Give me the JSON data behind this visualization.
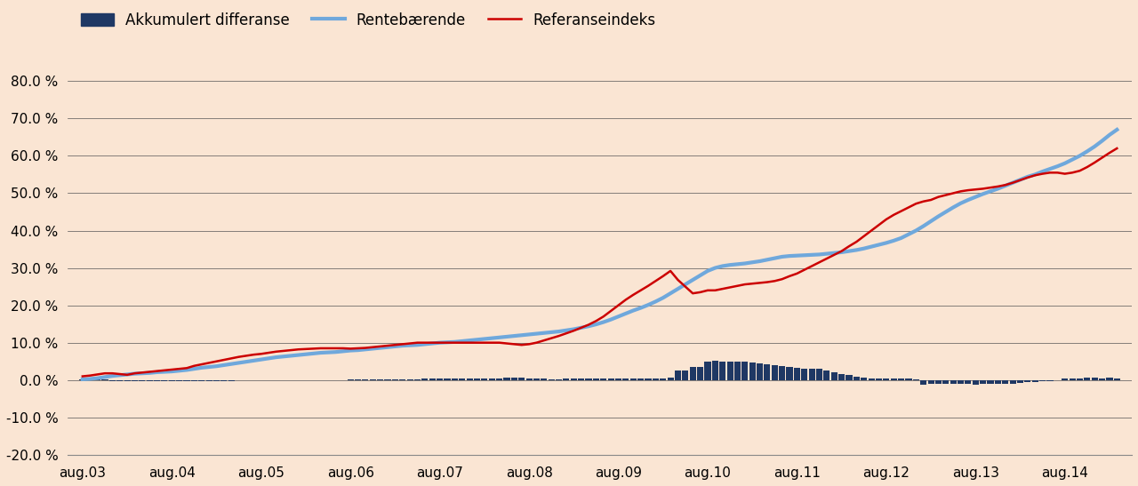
{
  "background_color": "#FAE5D3",
  "plot_bg_color": "#FAE5D3",
  "ylim": [
    -0.2,
    0.8
  ],
  "yticks": [
    -0.2,
    -0.1,
    0.0,
    0.1,
    0.2,
    0.3,
    0.4,
    0.5,
    0.6,
    0.7,
    0.8
  ],
  "xtick_labels": [
    "aug.03",
    "aug.04",
    "aug.05",
    "aug.06",
    "aug.07",
    "aug.08",
    "aug.09",
    "aug.10",
    "aug.11",
    "aug.12",
    "aug.13",
    "aug.14"
  ],
  "legend_labels": [
    "Akkumulert differanse",
    "Rentebærende",
    "Referanseindeks"
  ],
  "bar_color": "#1F3864",
  "line_blue_color": "#6FA8DC",
  "line_red_color": "#CC0000",
  "renteberende": [
    0.002,
    0.003,
    0.005,
    0.008,
    0.011,
    0.013,
    0.015,
    0.017,
    0.018,
    0.019,
    0.021,
    0.022,
    0.023,
    0.025,
    0.027,
    0.03,
    0.033,
    0.035,
    0.037,
    0.04,
    0.043,
    0.046,
    0.049,
    0.052,
    0.055,
    0.058,
    0.061,
    0.063,
    0.065,
    0.067,
    0.069,
    0.071,
    0.073,
    0.074,
    0.075,
    0.077,
    0.079,
    0.08,
    0.082,
    0.084,
    0.086,
    0.088,
    0.09,
    0.092,
    0.093,
    0.094,
    0.096,
    0.098,
    0.1,
    0.101,
    0.102,
    0.104,
    0.106,
    0.108,
    0.11,
    0.112,
    0.114,
    0.116,
    0.118,
    0.12,
    0.122,
    0.124,
    0.126,
    0.128,
    0.13,
    0.133,
    0.136,
    0.14,
    0.144,
    0.149,
    0.155,
    0.162,
    0.17,
    0.178,
    0.186,
    0.193,
    0.201,
    0.21,
    0.22,
    0.232,
    0.244,
    0.256,
    0.268,
    0.28,
    0.292,
    0.3,
    0.305,
    0.308,
    0.31,
    0.312,
    0.315,
    0.318,
    0.322,
    0.326,
    0.33,
    0.332,
    0.333,
    0.334,
    0.335,
    0.336,
    0.338,
    0.34,
    0.342,
    0.345,
    0.348,
    0.352,
    0.357,
    0.362,
    0.367,
    0.373,
    0.38,
    0.39,
    0.4,
    0.412,
    0.425,
    0.438,
    0.45,
    0.462,
    0.473,
    0.482,
    0.49,
    0.498,
    0.505,
    0.512,
    0.52,
    0.528,
    0.536,
    0.544,
    0.55,
    0.558,
    0.565,
    0.572,
    0.58,
    0.59,
    0.6,
    0.612,
    0.625,
    0.64,
    0.656,
    0.67
  ],
  "referanseindeks": [
    0.01,
    0.012,
    0.015,
    0.018,
    0.018,
    0.016,
    0.014,
    0.018,
    0.02,
    0.022,
    0.024,
    0.026,
    0.028,
    0.03,
    0.032,
    0.038,
    0.042,
    0.046,
    0.05,
    0.054,
    0.058,
    0.062,
    0.065,
    0.068,
    0.07,
    0.073,
    0.076,
    0.078,
    0.08,
    0.082,
    0.083,
    0.084,
    0.085,
    0.085,
    0.085,
    0.085,
    0.084,
    0.085,
    0.086,
    0.088,
    0.09,
    0.092,
    0.094,
    0.096,
    0.098,
    0.1,
    0.1,
    0.1,
    0.1,
    0.1,
    0.1,
    0.1,
    0.1,
    0.1,
    0.1,
    0.1,
    0.1,
    0.098,
    0.096,
    0.094,
    0.096,
    0.1,
    0.106,
    0.112,
    0.118,
    0.125,
    0.132,
    0.14,
    0.148,
    0.158,
    0.17,
    0.185,
    0.2,
    0.215,
    0.228,
    0.24,
    0.252,
    0.265,
    0.278,
    0.292,
    0.268,
    0.25,
    0.232,
    0.235,
    0.24,
    0.24,
    0.244,
    0.248,
    0.252,
    0.256,
    0.258,
    0.26,
    0.262,
    0.265,
    0.27,
    0.278,
    0.285,
    0.295,
    0.305,
    0.315,
    0.325,
    0.335,
    0.345,
    0.358,
    0.37,
    0.385,
    0.4,
    0.415,
    0.43,
    0.442,
    0.452,
    0.462,
    0.472,
    0.478,
    0.482,
    0.49,
    0.495,
    0.5,
    0.505,
    0.508,
    0.51,
    0.512,
    0.515,
    0.518,
    0.522,
    0.528,
    0.535,
    0.542,
    0.548,
    0.552,
    0.555,
    0.555,
    0.552,
    0.555,
    0.56,
    0.57,
    0.582,
    0.595,
    0.608,
    0.62
  ],
  "differanse": [
    0.001,
    0.001,
    0.001,
    0.001,
    -0.002,
    -0.003,
    -0.004,
    -0.003,
    -0.002,
    -0.002,
    -0.002,
    -0.002,
    -0.002,
    -0.002,
    -0.002,
    -0.002,
    -0.002,
    -0.002,
    -0.002,
    -0.002,
    -0.002,
    -0.001,
    -0.001,
    -0.001,
    -0.001,
    -0.001,
    -0.001,
    -0.001,
    -0.001,
    -0.001,
    -0.001,
    -0.001,
    -0.001,
    -0.001,
    -0.001,
    -0.001,
    0.001,
    0.001,
    0.002,
    0.002,
    0.002,
    0.002,
    0.002,
    0.002,
    0.002,
    0.002,
    0.003,
    0.003,
    0.003,
    0.003,
    0.004,
    0.004,
    0.004,
    0.004,
    0.005,
    0.005,
    0.005,
    0.006,
    0.006,
    0.006,
    0.004,
    0.003,
    0.003,
    0.002,
    0.002,
    0.003,
    0.003,
    0.004,
    0.004,
    0.004,
    0.005,
    0.005,
    0.005,
    0.004,
    0.004,
    0.004,
    0.005,
    0.005,
    0.005,
    0.006,
    0.025,
    0.025,
    0.036,
    0.036,
    0.05,
    0.051,
    0.05,
    0.05,
    0.05,
    0.05,
    0.048,
    0.045,
    0.042,
    0.04,
    0.037,
    0.035,
    0.032,
    0.03,
    0.03,
    0.03,
    0.025,
    0.02,
    0.017,
    0.013,
    0.009,
    0.007,
    0.005,
    0.004,
    0.003,
    0.003,
    0.003,
    0.003,
    0.001,
    -0.012,
    -0.01,
    -0.01,
    -0.009,
    -0.009,
    -0.009,
    -0.01,
    -0.013,
    -0.011,
    -0.01,
    -0.009,
    -0.009,
    -0.009,
    -0.008,
    -0.006,
    -0.005,
    -0.003,
    -0.002,
    -0.001,
    0.003,
    0.005,
    0.005,
    0.006,
    0.006,
    0.005,
    0.006,
    0.005
  ]
}
